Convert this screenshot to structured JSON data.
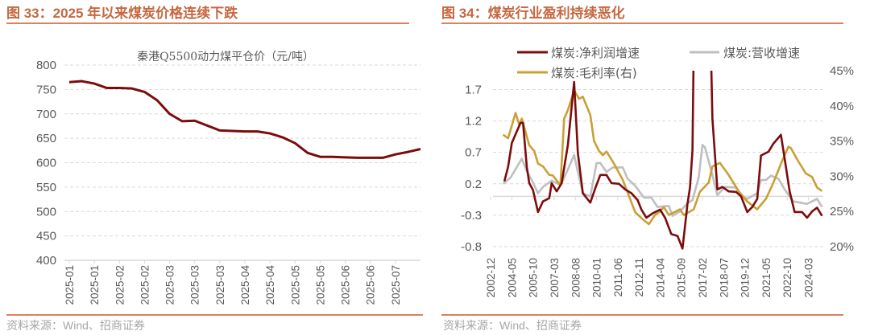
{
  "left_panel": {
    "title": "图 33：2025 年以来煤炭价格连续下跌",
    "source": "资料来源：Wind、招商证券"
  },
  "right_panel": {
    "title": "图 34：煤炭行业盈利持续恶化",
    "source": "资料来源：Wind、招商证券"
  },
  "colors": {
    "title": "#C5673F",
    "rule": "#D9825F",
    "net_profit": "#7B0C0C",
    "revenue": "#BFBFBF",
    "gross_margin": "#C9A035",
    "grid": "#D9D9D9"
  },
  "chart_data": [
    {
      "type": "line",
      "title": "秦港Q5500动力煤平仓价（元/吨）",
      "ylim": [
        400,
        800
      ],
      "yticks": [
        "800",
        "750",
        "700",
        "650",
        "600",
        "550",
        "500",
        "450",
        "400"
      ],
      "xtick_labels": [
        "2025-01",
        "2025-01",
        "2025-02",
        "2025-02",
        "2025-03",
        "2025-03",
        "2025-03",
        "2025-04",
        "2025-04",
        "2025-05",
        "2025-05",
        "2025-06",
        "2025-06",
        "2025-07"
      ],
      "grid": true,
      "series": [
        {
          "values": [
            765,
            767,
            762,
            753,
            753,
            752,
            745,
            728,
            700,
            685,
            686,
            676,
            666,
            665,
            664,
            664,
            660,
            652,
            640,
            620,
            612,
            612,
            611,
            610,
            610,
            610,
            617,
            622,
            628
          ]
        }
      ]
    },
    {
      "type": "line",
      "xlim": [
        "2002-10",
        "2025-03"
      ],
      "xtick_labels": [
        "2002-12",
        "2004-05",
        "2005-10",
        "2007-03",
        "2008-08",
        "2010-01",
        "2011-06",
        "2012-11",
        "2014-04",
        "2015-09",
        "2017-02",
        "2018-07",
        "2019-12",
        "2021-05",
        "2022-10",
        "2024-03"
      ],
      "ylim_left": [
        -0.8,
        2.0
      ],
      "yticks_left": [
        "1.7",
        "1.2",
        "0.7",
        "0.2",
        "-0.3",
        "-0.8"
      ],
      "ylim_right": [
        20,
        45
      ],
      "yticks_right": [
        "45%",
        "40%",
        "35%",
        "30%",
        "25%",
        "20%"
      ],
      "grid": true,
      "legend_position": "top",
      "series": [
        {
          "name": "煤炭:净利润增速",
          "axis": "left",
          "points": [
            [
              "2003-11",
              0.24
            ],
            [
              "2004-02",
              0.47
            ],
            [
              "2004-05",
              0.85
            ],
            [
              "2004-12",
              1.17
            ],
            [
              "2005-02",
              1.17
            ],
            [
              "2005-05",
              0.47
            ],
            [
              "2005-07",
              0.21
            ],
            [
              "2005-10",
              0.1
            ],
            [
              "2006-02",
              -0.25
            ],
            [
              "2006-06",
              -0.08
            ],
            [
              "2006-11",
              -0.03
            ],
            [
              "2007-01",
              0.21
            ],
            [
              "2007-05",
              0.08
            ],
            [
              "2007-09",
              0.21
            ],
            [
              "2008-02",
              0.82
            ],
            [
              "2008-07",
              1.82
            ],
            [
              "2008-10",
              0.69
            ],
            [
              "2009-02",
              0.05
            ],
            [
              "2009-08",
              -0.1
            ],
            [
              "2009-12",
              0.13
            ],
            [
              "2010-04",
              0.34
            ],
            [
              "2010-09",
              0.34
            ],
            [
              "2011-01",
              0.21
            ],
            [
              "2011-07",
              0.2
            ],
            [
              "2011-12",
              0.11
            ],
            [
              "2012-05",
              0.05
            ],
            [
              "2012-10",
              -0.06
            ],
            [
              "2013-01",
              -0.21
            ],
            [
              "2013-05",
              -0.34
            ],
            [
              "2013-10",
              -0.27
            ],
            [
              "2014-04",
              -0.21
            ],
            [
              "2014-08",
              -0.34
            ],
            [
              "2015-01",
              -0.6
            ],
            [
              "2015-06",
              -0.63
            ],
            [
              "2015-10",
              -0.83
            ],
            [
              "2016-02",
              -0.12
            ],
            [
              "2016-04",
              0.14
            ],
            [
              "2016-06",
              0.73
            ],
            [
              "2016-08",
              4.0
            ],
            [
              "2017-07",
              4.0
            ],
            [
              "2017-10",
              1.24
            ],
            [
              "2018-02",
              0.11
            ],
            [
              "2018-06",
              0.15
            ],
            [
              "2018-11",
              0.08
            ],
            [
              "2019-05",
              0.07
            ],
            [
              "2019-09",
              0.0
            ],
            [
              "2020-02",
              -0.25
            ],
            [
              "2020-06",
              -0.17
            ],
            [
              "2020-10",
              -0.04
            ],
            [
              "2021-01",
              0.65
            ],
            [
              "2021-07",
              0.71
            ],
            [
              "2021-11",
              0.84
            ],
            [
              "2022-05",
              0.98
            ],
            [
              "2022-08",
              0.6
            ],
            [
              "2022-12",
              0.08
            ],
            [
              "2023-04",
              -0.25
            ],
            [
              "2023-10",
              -0.25
            ],
            [
              "2024-02",
              -0.34
            ],
            [
              "2024-06",
              -0.24
            ],
            [
              "2024-10",
              -0.18
            ],
            [
              "2025-02",
              -0.31
            ]
          ]
        },
        {
          "name": "煤炭:营收增速",
          "axis": "left",
          "points": [
            [
              "2003-10",
              0.2
            ],
            [
              "2004-04",
              0.3
            ],
            [
              "2005-01",
              0.6
            ],
            [
              "2005-05",
              0.4
            ],
            [
              "2005-09",
              0.26
            ],
            [
              "2006-02",
              0.05
            ],
            [
              "2006-06",
              0.15
            ],
            [
              "2007-01",
              0.25
            ],
            [
              "2007-06",
              0.2
            ],
            [
              "2007-09",
              0.21
            ],
            [
              "2008-02",
              0.43
            ],
            [
              "2008-07",
              0.66
            ],
            [
              "2008-10",
              0.39
            ],
            [
              "2009-02",
              0.05
            ],
            [
              "2009-08",
              0.0
            ],
            [
              "2010-01",
              0.53
            ],
            [
              "2010-04",
              0.53
            ],
            [
              "2010-09",
              0.39
            ],
            [
              "2011-02",
              0.46
            ],
            [
              "2011-10",
              0.46
            ],
            [
              "2012-02",
              0.28
            ],
            [
              "2012-08",
              0.17
            ],
            [
              "2013-03",
              -0.02
            ],
            [
              "2013-09",
              -0.02
            ],
            [
              "2014-02",
              -0.17
            ],
            [
              "2014-11",
              -0.15
            ],
            [
              "2015-02",
              -0.31
            ],
            [
              "2015-08",
              -0.24
            ],
            [
              "2016-02",
              -0.11
            ],
            [
              "2016-06",
              -0.06
            ],
            [
              "2016-11",
              0.3
            ],
            [
              "2017-02",
              0.82
            ],
            [
              "2017-04",
              0.78
            ],
            [
              "2017-10",
              0.34
            ],
            [
              "2018-02",
              0.02
            ],
            [
              "2018-08",
              0.15
            ],
            [
              "2019-05",
              0.14
            ],
            [
              "2019-09",
              0.0
            ],
            [
              "2020-02",
              -0.04
            ],
            [
              "2020-10",
              0.05
            ],
            [
              "2021-01",
              0.26
            ],
            [
              "2021-05",
              0.26
            ],
            [
              "2021-09",
              0.33
            ],
            [
              "2022-03",
              0.28
            ],
            [
              "2022-08",
              0.11
            ],
            [
              "2023-03",
              -0.08
            ],
            [
              "2024-02",
              -0.12
            ],
            [
              "2024-10",
              -0.04
            ],
            [
              "2025-02",
              -0.17
            ]
          ]
        },
        {
          "name": "煤炭:毛利率(右)",
          "axis": "right",
          "points": [
            [
              "2003-10",
              35.9
            ],
            [
              "2004-02",
              35.4
            ],
            [
              "2004-08",
              39.0
            ],
            [
              "2004-11",
              37.3
            ],
            [
              "2005-01",
              38.2
            ],
            [
              "2005-07",
              34.4
            ],
            [
              "2005-11",
              33.6
            ],
            [
              "2006-02",
              31.8
            ],
            [
              "2006-06",
              31.4
            ],
            [
              "2006-11",
              30.2
            ],
            [
              "2007-02",
              30.1
            ],
            [
              "2007-08",
              28.7
            ],
            [
              "2007-11",
              38.2
            ],
            [
              "2008-02",
              39.4
            ],
            [
              "2008-07",
              42.2
            ],
            [
              "2008-11",
              41.0
            ],
            [
              "2009-02",
              41.3
            ],
            [
              "2009-08",
              38.7
            ],
            [
              "2009-11",
              35.0
            ],
            [
              "2010-03",
              33.6
            ],
            [
              "2010-06",
              33.0
            ],
            [
              "2010-09",
              33.5
            ],
            [
              "2011-03",
              31.8
            ],
            [
              "2011-10",
              29.5
            ],
            [
              "2012-03",
              27.2
            ],
            [
              "2012-08",
              24.9
            ],
            [
              "2013-02",
              23.9
            ],
            [
              "2013-07",
              23.2
            ],
            [
              "2013-12",
              24.5
            ],
            [
              "2014-04",
              25.0
            ],
            [
              "2014-07",
              25.6
            ],
            [
              "2014-11",
              24.5
            ],
            [
              "2015-08",
              25.3
            ],
            [
              "2015-11",
              24.5
            ],
            [
              "2016-07",
              25.3
            ],
            [
              "2016-12",
              27.8
            ],
            [
              "2017-07",
              29.1
            ],
            [
              "2017-10",
              31.4
            ],
            [
              "2018-04",
              31.9
            ],
            [
              "2018-11",
              30.2
            ],
            [
              "2019-07",
              27.9
            ],
            [
              "2020-02",
              26.4
            ],
            [
              "2020-10",
              25.3
            ],
            [
              "2021-05",
              26.8
            ],
            [
              "2021-11",
              29.1
            ],
            [
              "2022-06",
              32.2
            ],
            [
              "2022-11",
              34.2
            ],
            [
              "2023-01",
              34.0
            ],
            [
              "2023-06",
              32.4
            ],
            [
              "2024-01",
              30.4
            ],
            [
              "2024-06",
              29.9
            ],
            [
              "2024-10",
              28.4
            ],
            [
              "2025-02",
              27.9
            ]
          ]
        }
      ]
    }
  ]
}
